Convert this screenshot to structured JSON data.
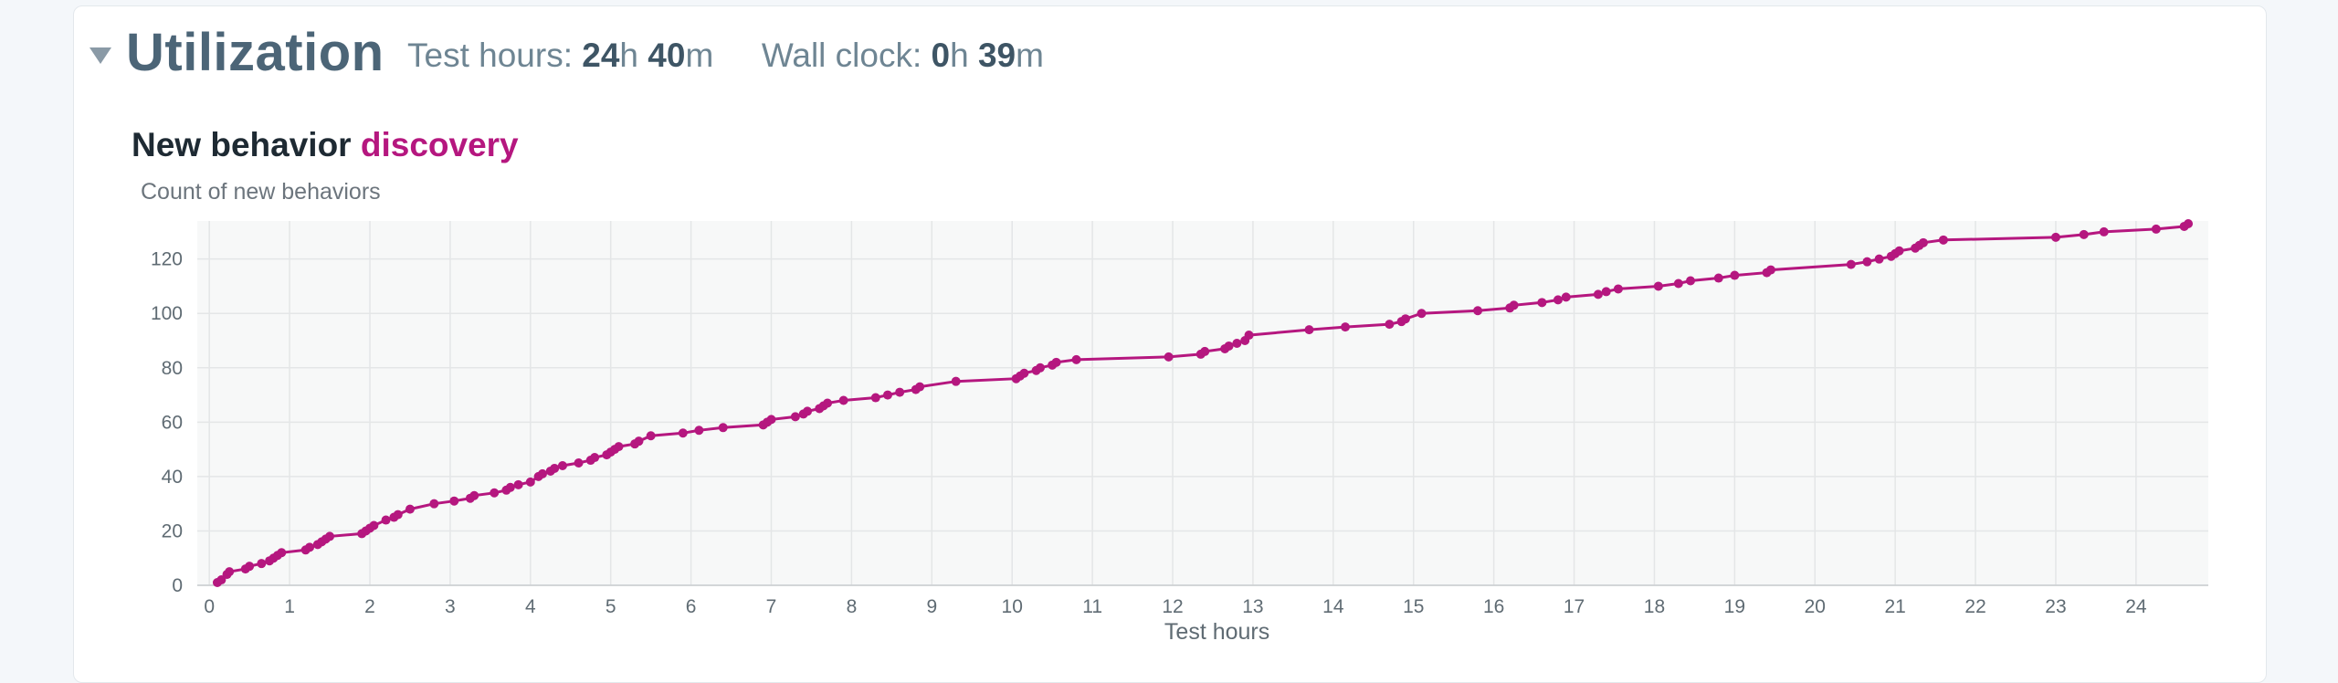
{
  "section": {
    "title": "Utilization",
    "test_hours_label": "Test hours:",
    "test_hours_h": "24",
    "test_hours_m": "40",
    "wall_clock_label": "Wall clock:",
    "wall_clock_h": "0",
    "wall_clock_m": "39",
    "unit_h": "h",
    "unit_m": "m"
  },
  "colors": {
    "accent": "#b5177f",
    "heading": "#4c6577",
    "plot_bg": "#f7f8f8",
    "grid": "#e4e6e7"
  },
  "icons": {
    "toggle": "triangle-down-icon"
  },
  "chart_data": {
    "type": "line",
    "title_prefix": "New behavior",
    "title_accent": "discovery",
    "ylabel": "Count of new behaviors",
    "xlabel": "Test hours",
    "xlim": [
      -0.15,
      24.9
    ],
    "ylim": [
      0,
      134
    ],
    "xticks": [
      0,
      1,
      2,
      3,
      4,
      5,
      6,
      7,
      8,
      9,
      10,
      11,
      12,
      13,
      14,
      15,
      16,
      17,
      18,
      19,
      20,
      21,
      22,
      23,
      24
    ],
    "yticks": [
      0,
      20,
      40,
      60,
      80,
      100,
      120
    ],
    "grid": true,
    "legend": "none",
    "markers": true,
    "series": [
      {
        "x": [
          0.1,
          0.15,
          0.22,
          0.25,
          0.45,
          0.5,
          0.65,
          0.75,
          0.8,
          0.85,
          0.9,
          1.2,
          1.25,
          1.35,
          1.4,
          1.45,
          1.5,
          1.9,
          1.95,
          2.0,
          2.05,
          2.2,
          2.3,
          2.35,
          2.5,
          2.8,
          3.05,
          3.25,
          3.3,
          3.55,
          3.7,
          3.75,
          3.85,
          4.0,
          4.1,
          4.15,
          4.25,
          4.3,
          4.4,
          4.6,
          4.75,
          4.8,
          4.95,
          5.0,
          5.05,
          5.1,
          5.3,
          5.35,
          5.5,
          5.9,
          6.1,
          6.4,
          6.9,
          6.95,
          7.0,
          7.3,
          7.4,
          7.45,
          7.6,
          7.65,
          7.7,
          7.9,
          8.3,
          8.45,
          8.6,
          8.8,
          8.85,
          9.3,
          10.05,
          10.1,
          10.15,
          10.3,
          10.35,
          10.5,
          10.55,
          10.8,
          11.95,
          12.35,
          12.4,
          12.65,
          12.7,
          12.8,
          12.9,
          12.95,
          13.7,
          14.15,
          14.7,
          14.85,
          14.9,
          15.1,
          15.8,
          16.2,
          16.25,
          16.6,
          16.8,
          16.9,
          17.3,
          17.4,
          17.55,
          18.05,
          18.3,
          18.45,
          18.8,
          19.0,
          19.4,
          19.45,
          20.45,
          20.65,
          20.8,
          20.95,
          21.0,
          21.05,
          21.25,
          21.3,
          21.35,
          21.6,
          23.0,
          23.35,
          23.6,
          24.25,
          24.6,
          24.65
        ],
        "y": [
          1,
          2,
          4,
          5,
          6,
          7,
          8,
          9,
          10,
          11,
          12,
          13,
          14,
          15,
          16,
          17,
          18,
          19,
          20,
          21,
          22,
          24,
          25,
          26,
          28,
          30,
          31,
          32,
          33,
          34,
          35,
          36,
          37,
          38,
          40,
          41,
          42,
          43,
          44,
          45,
          46,
          47,
          48,
          49,
          50,
          51,
          52,
          53,
          55,
          56,
          57,
          58,
          59,
          60,
          61,
          62,
          63,
          64,
          65,
          66,
          67,
          68,
          69,
          70,
          71,
          72,
          73,
          75,
          76,
          77,
          78,
          79,
          80,
          81,
          82,
          83,
          84,
          85,
          86,
          87,
          88,
          89,
          90,
          92,
          94,
          95,
          96,
          97,
          98,
          100,
          101,
          102,
          103,
          104,
          105,
          106,
          107,
          108,
          109,
          110,
          111,
          112,
          113,
          114,
          115,
          116,
          118,
          119,
          120,
          121,
          122,
          123,
          124,
          125,
          126,
          127,
          128,
          129,
          130,
          131,
          132,
          133
        ]
      }
    ]
  }
}
